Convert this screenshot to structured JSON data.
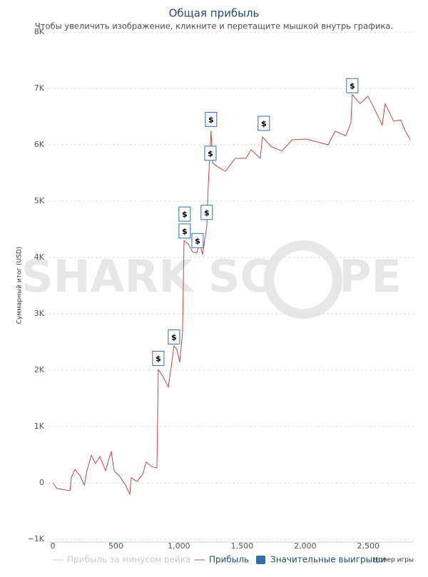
{
  "chart_data": {
    "type": "line",
    "title": "Общая прибыль",
    "subtitle": "Чтобы увеличить изображение, кликните и перетащите мышкой внутрь графика.",
    "y_label": "Суммарный итог (USD)",
    "x_label": "Номер игры",
    "watermark": [
      "SHARK SC",
      "PE"
    ],
    "grid": true,
    "xlim": [
      0,
      2860
    ],
    "xticks": [
      0,
      500,
      {
        "value": 1000,
        "label": "1,000"
      },
      {
        "value": 1500,
        "label": "1,500"
      },
      {
        "value": 2000,
        "label": "2,000"
      },
      {
        "value": 2500,
        "label": "2,500"
      }
    ],
    "ylim": [
      -1000,
      8000
    ],
    "yticks": [
      {
        "value": -1000,
        "label": "−1K"
      },
      0,
      {
        "value": 1000,
        "label": "1K"
      },
      {
        "value": 2000,
        "label": "2K"
      },
      {
        "value": 3000,
        "label": "3K"
      },
      {
        "value": 4000,
        "label": "4K"
      },
      {
        "value": 5000,
        "label": "5K"
      },
      {
        "value": 6000,
        "label": "6K"
      },
      {
        "value": 7000,
        "label": "7K"
      },
      {
        "value": 8000,
        "label": "8K"
      }
    ],
    "hidden_series": [
      {
        "name": "Прибыль за минусом рейка",
        "color": "#cccccc"
      }
    ],
    "series": [
      {
        "name": "Прибыль",
        "color": "#b84c46",
        "x": [
          0,
          34,
          136,
          147,
          175,
          215,
          250,
          271,
          305,
          339,
          373,
          418,
          463,
          486,
          531,
          576,
          610,
          622,
          667,
          712,
          740,
          780,
          825,
          836,
          870,
          915,
          938,
          960,
          983,
          1006,
          1028,
          1040,
          1073,
          1107,
          1141,
          1164,
          1186,
          1220,
          1232,
          1254,
          1266,
          1305,
          1367,
          1446,
          1531,
          1571,
          1644,
          1661,
          1729,
          1814,
          1898,
          2011,
          2181,
          2237,
          2322,
          2362,
          2373,
          2435,
          2497,
          2542,
          2610,
          2633,
          2701,
          2757,
          2791,
          2831
        ],
        "values": [
          0,
          -100,
          -140,
          90,
          240,
          130,
          -40,
          215,
          490,
          340,
          470,
          215,
          560,
          215,
          115,
          -40,
          -200,
          90,
          25,
          150,
          370,
          290,
          265,
          2010,
          1900,
          1700,
          2050,
          2430,
          2370,
          2140,
          2680,
          4300,
          4240,
          4100,
          4080,
          4270,
          4050,
          4540,
          5280,
          6250,
          5680,
          5610,
          5530,
          5760,
          5760,
          5910,
          5760,
          6140,
          5970,
          5890,
          6090,
          6100,
          6000,
          6240,
          6160,
          6390,
          6890,
          6730,
          6860,
          6670,
          6350,
          6730,
          6420,
          6440,
          6250,
          6100
        ]
      },
      {
        "name": "Значительные выигрыши",
        "color": "#2f6fb0",
        "marker_label": "$",
        "x": [
          836,
          960,
          1045,
          1045,
          1147,
          1220,
          1249,
          1254,
          1672,
          2373
        ],
        "values": [
          2210,
          2590,
          4770,
          4470,
          4300,
          4800,
          5850,
          6450,
          6380,
          7050
        ]
      }
    ]
  }
}
